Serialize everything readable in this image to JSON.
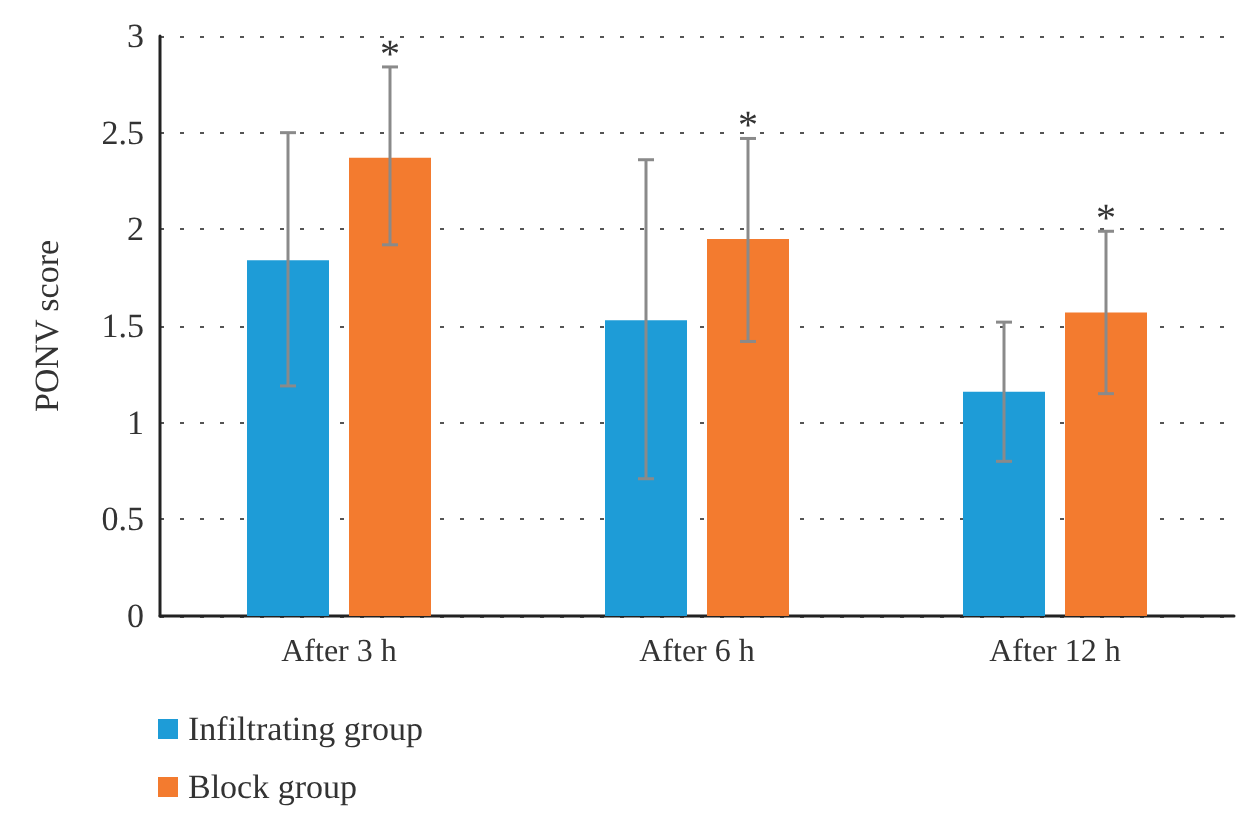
{
  "chart_data": {
    "type": "bar",
    "ylabel": "PONV score",
    "categories": [
      "After 3 h",
      "After 6 h",
      "After 12 h"
    ],
    "series": [
      {
        "name": "Infiltrating group",
        "color": "#1e9cd7",
        "values": [
          1.84,
          1.53,
          1.16
        ],
        "errors": [
          [
            1.19,
            2.5
          ],
          [
            0.71,
            2.36
          ],
          [
            0.8,
            1.52
          ]
        ]
      },
      {
        "name": "Block group",
        "color": "#f37b2f",
        "values": [
          2.37,
          1.95,
          1.57
        ],
        "errors": [
          [
            1.92,
            2.84
          ],
          [
            1.42,
            2.47
          ],
          [
            1.15,
            1.99
          ]
        ]
      }
    ],
    "ylim": [
      0,
      3
    ],
    "yticks": [
      0,
      0.5,
      1,
      1.5,
      2,
      2.5,
      3
    ],
    "grid": "y",
    "legend": "bottom left",
    "annotations": [
      "*",
      "*",
      "*"
    ]
  }
}
